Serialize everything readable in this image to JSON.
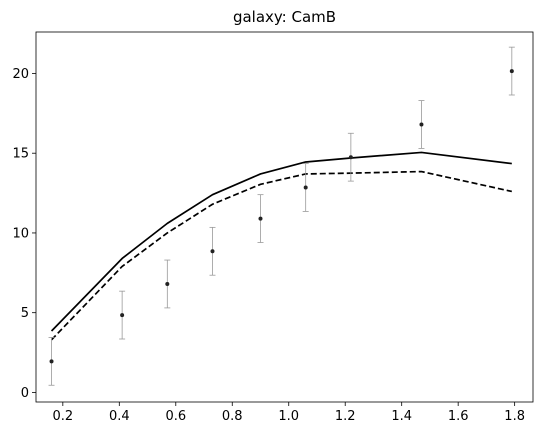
{
  "chart_data": {
    "type": "line",
    "title": "galaxy: CamB",
    "xlabel": "",
    "ylabel": "",
    "xlim": [
      0.105,
      1.865
    ],
    "ylim": [
      -0.6,
      22.6
    ],
    "xticks": [
      0.2,
      0.4,
      0.6,
      0.8,
      1.0,
      1.2,
      1.4,
      1.6,
      1.8
    ],
    "xtick_labels": [
      "0.2",
      "0.4",
      "0.6",
      "0.8",
      "1.0",
      "1.2",
      "1.4",
      "1.6",
      "1.8"
    ],
    "yticks": [
      0,
      5,
      10,
      15,
      20
    ],
    "ytick_labels": [
      "0",
      "5",
      "10",
      "15",
      "20"
    ],
    "grid": false,
    "series": [
      {
        "style": "solid",
        "color": "#000000",
        "x": [
          0.16,
          0.41,
          0.57,
          0.73,
          0.9,
          1.06,
          1.22,
          1.47,
          1.79
        ],
        "y": [
          3.85,
          8.4,
          10.6,
          12.4,
          13.7,
          14.45,
          14.7,
          15.05,
          14.35
        ]
      },
      {
        "style": "dashed",
        "color": "#000000",
        "x": [
          0.16,
          0.41,
          0.57,
          0.73,
          0.9,
          1.06,
          1.22,
          1.47,
          1.79
        ],
        "y": [
          3.3,
          7.9,
          10.0,
          11.8,
          13.05,
          13.7,
          13.75,
          13.85,
          12.6
        ]
      },
      {
        "style": "errorbar",
        "color": "#222222",
        "errcolor": "#999999",
        "x": [
          0.16,
          0.41,
          0.57,
          0.73,
          0.9,
          1.06,
          1.22,
          1.47,
          1.79
        ],
        "y": [
          1.95,
          4.85,
          6.8,
          8.85,
          10.9,
          12.85,
          14.75,
          16.8,
          20.15
        ],
        "yerr": [
          1.5,
          1.5,
          1.5,
          1.5,
          1.5,
          1.5,
          1.5,
          1.5,
          1.5
        ]
      }
    ]
  }
}
